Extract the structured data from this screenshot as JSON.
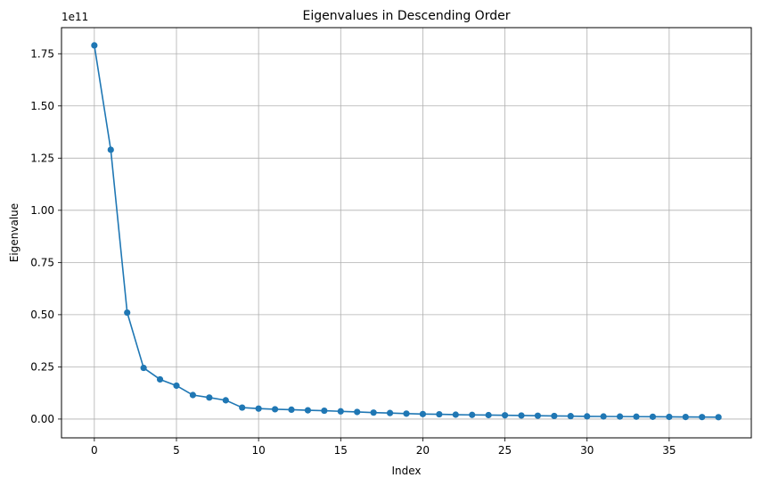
{
  "chart_data": {
    "type": "line",
    "title": "Eigenvalues in Descending Order",
    "xlabel": "Index",
    "ylabel": "Eigenvalue",
    "y_offset_label": "1e11",
    "xlim": [
      -2.0,
      40.0
    ],
    "ylim": [
      -0.09,
      1.875
    ],
    "x_ticks": [
      0,
      5,
      10,
      15,
      20,
      25,
      30,
      35
    ],
    "y_ticks": [
      0.0,
      0.25,
      0.5,
      0.75,
      1.0,
      1.25,
      1.5,
      1.75
    ],
    "y_tick_labels": [
      "0.00",
      "0.25",
      "0.50",
      "0.75",
      "1.00",
      "1.25",
      "1.50",
      "1.75"
    ],
    "grid": true,
    "marker": "circle",
    "color": "#1f77b4",
    "series": [
      {
        "x": [
          0,
          1,
          2,
          3,
          4,
          5,
          6,
          7,
          8,
          9,
          10,
          11,
          12,
          13,
          14,
          15,
          16,
          17,
          18,
          19,
          20,
          21,
          22,
          23,
          24,
          25,
          26,
          27,
          28,
          29,
          30,
          31,
          32,
          33,
          34,
          35,
          36,
          37,
          38
        ],
        "values": [
          1.79,
          1.29,
          0.51,
          0.245,
          0.19,
          0.16,
          0.115,
          0.103,
          0.09,
          0.055,
          0.05,
          0.047,
          0.045,
          0.042,
          0.04,
          0.037,
          0.034,
          0.031,
          0.029,
          0.026,
          0.024,
          0.023,
          0.021,
          0.02,
          0.019,
          0.018,
          0.017,
          0.016,
          0.015,
          0.014,
          0.013,
          0.0125,
          0.012,
          0.0115,
          0.011,
          0.0105,
          0.01,
          0.0095,
          0.009
        ]
      }
    ]
  }
}
